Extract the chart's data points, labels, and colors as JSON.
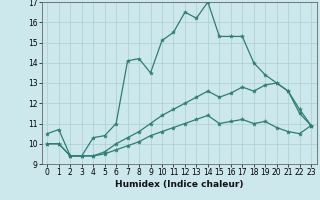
{
  "title": "",
  "xlabel": "Humidex (Indice chaleur)",
  "xlim": [
    -0.5,
    23.5
  ],
  "ylim": [
    9,
    17
  ],
  "xticks": [
    0,
    1,
    2,
    3,
    4,
    5,
    6,
    7,
    8,
    9,
    10,
    11,
    12,
    13,
    14,
    15,
    16,
    17,
    18,
    19,
    20,
    21,
    22,
    23
  ],
  "yticks": [
    9,
    10,
    11,
    12,
    13,
    14,
    15,
    16,
    17
  ],
  "bg_color": "#cde8ed",
  "line_color": "#2e7d72",
  "grid_color": "#aacdd4",
  "line1_x": [
    0,
    1,
    2,
    3,
    4,
    5,
    6,
    7,
    8,
    9,
    10,
    11,
    12,
    13,
    14,
    15,
    16,
    17,
    18,
    19,
    20,
    21,
    22,
    23
  ],
  "line1_y": [
    10.5,
    10.7,
    9.4,
    9.4,
    10.3,
    10.4,
    11.0,
    14.1,
    14.2,
    13.5,
    15.1,
    15.5,
    16.5,
    16.2,
    17.0,
    15.3,
    15.3,
    15.3,
    14.0,
    13.4,
    13.0,
    12.6,
    11.5,
    10.9
  ],
  "line2_x": [
    0,
    1,
    2,
    3,
    4,
    5,
    6,
    7,
    8,
    9,
    10,
    11,
    12,
    13,
    14,
    15,
    16,
    17,
    18,
    19,
    20,
    21,
    22,
    23
  ],
  "line2_y": [
    10.0,
    10.0,
    9.4,
    9.4,
    9.4,
    9.6,
    10.0,
    10.3,
    10.6,
    11.0,
    11.4,
    11.7,
    12.0,
    12.3,
    12.6,
    12.3,
    12.5,
    12.8,
    12.6,
    12.9,
    13.0,
    12.6,
    11.7,
    10.9
  ],
  "line3_x": [
    0,
    1,
    2,
    3,
    4,
    5,
    6,
    7,
    8,
    9,
    10,
    11,
    12,
    13,
    14,
    15,
    16,
    17,
    18,
    19,
    20,
    21,
    22,
    23
  ],
  "line3_y": [
    10.0,
    10.0,
    9.4,
    9.4,
    9.4,
    9.5,
    9.7,
    9.9,
    10.1,
    10.4,
    10.6,
    10.8,
    11.0,
    11.2,
    11.4,
    11.0,
    11.1,
    11.2,
    11.0,
    11.1,
    10.8,
    10.6,
    10.5,
    10.9
  ],
  "tick_fontsize": 5.5,
  "xlabel_fontsize": 6.5,
  "marker_size": 3,
  "linewidth": 0.9
}
